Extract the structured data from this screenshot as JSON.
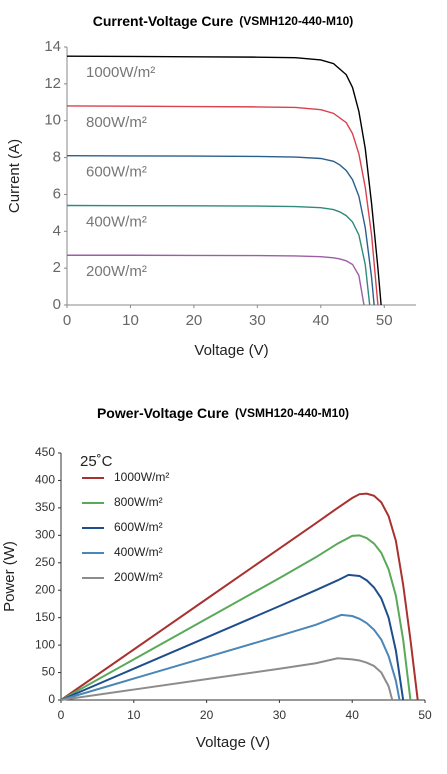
{
  "chart_data": [
    {
      "type": "line",
      "title": "Current-Voltage Cure",
      "subtitle": "(VSMH120-440-M10)",
      "xlabel": "Voltage (V)",
      "ylabel": "Current (A)",
      "xlim": [
        0,
        55
      ],
      "ylim": [
        0,
        14
      ],
      "xticks": [
        0,
        10,
        20,
        30,
        40,
        50
      ],
      "yticks": [
        0,
        2,
        4,
        6,
        8,
        10,
        12,
        14
      ],
      "legend": "inline",
      "series": [
        {
          "name": "1000W/m²",
          "color": "#000000",
          "x": [
            0,
            10,
            20,
            30,
            36,
            40,
            42,
            44,
            45,
            46,
            47,
            48,
            49,
            49.5
          ],
          "values": [
            13.5,
            13.49,
            13.47,
            13.45,
            13.42,
            13.3,
            13.1,
            12.5,
            11.8,
            10.5,
            8.5,
            5.5,
            2,
            0
          ]
        },
        {
          "name": "800W/m²",
          "color": "#d9414e",
          "x": [
            0,
            10,
            20,
            30,
            36,
            40,
            42,
            44,
            45,
            46,
            47,
            48,
            48.6,
            49
          ],
          "values": [
            10.8,
            10.79,
            10.77,
            10.75,
            10.72,
            10.6,
            10.4,
            9.9,
            9.3,
            8.2,
            6.4,
            3.8,
            1.5,
            0
          ]
        },
        {
          "name": "600W/m²",
          "color": "#2b5f8c",
          "x": [
            0,
            10,
            20,
            30,
            36,
            40,
            42,
            43,
            44,
            45,
            46,
            47,
            48,
            48.4
          ],
          "values": [
            8.1,
            8.09,
            8.08,
            8.06,
            8.03,
            7.95,
            7.8,
            7.6,
            7.3,
            6.8,
            5.9,
            4.2,
            1.5,
            0
          ]
        },
        {
          "name": "400W/m²",
          "color": "#2e8b7a",
          "x": [
            0,
            10,
            20,
            30,
            36,
            40,
            42,
            43,
            44,
            45,
            46,
            47,
            47.7
          ],
          "values": [
            5.4,
            5.39,
            5.38,
            5.37,
            5.34,
            5.28,
            5.18,
            5.05,
            4.85,
            4.5,
            3.8,
            2.2,
            0
          ]
        },
        {
          "name": "200W/m²",
          "color": "#9b5ea6",
          "x": [
            0,
            10,
            20,
            30,
            36,
            40,
            42,
            43,
            44,
            45,
            46,
            46.8
          ],
          "values": [
            2.7,
            2.7,
            2.69,
            2.68,
            2.66,
            2.62,
            2.56,
            2.5,
            2.4,
            2.2,
            1.6,
            0
          ]
        }
      ]
    },
    {
      "type": "line",
      "title": "Power-Voltage Cure",
      "subtitle": "(VSMH120-440-M10)",
      "xlabel": "Voltage (V)",
      "ylabel": "Power (W)",
      "xlim": [
        0,
        50
      ],
      "ylim": [
        0,
        450
      ],
      "xticks": [
        0,
        10,
        20,
        30,
        40,
        50
      ],
      "yticks": [
        0,
        50,
        100,
        150,
        200,
        250,
        300,
        350,
        400,
        450
      ],
      "legend": "upper left",
      "legend_title": "25˚C",
      "series": [
        {
          "name": "1000W/m²",
          "color": "#a8322f",
          "x": [
            0,
            10,
            20,
            30,
            35,
            38,
            40,
            41,
            42,
            43,
            44,
            45,
            46,
            47,
            48,
            49
          ],
          "values": [
            0,
            92,
            184,
            276,
            322,
            350,
            368,
            375,
            376,
            372,
            360,
            335,
            290,
            210,
            110,
            0
          ]
        },
        {
          "name": "800W/m²",
          "color": "#5aa95a",
          "x": [
            0,
            10,
            20,
            30,
            35,
            38,
            40,
            41,
            42,
            43,
            44,
            45,
            46,
            47,
            48
          ],
          "values": [
            0,
            74,
            148,
            222,
            260,
            285,
            299,
            300,
            295,
            285,
            268,
            238,
            190,
            110,
            0
          ]
        },
        {
          "name": "600W/m²",
          "color": "#1f4e8c",
          "x": [
            0,
            10,
            20,
            30,
            35,
            38,
            39.5,
            41,
            42,
            43,
            44,
            45,
            46,
            47
          ],
          "values": [
            0,
            57,
            114,
            171,
            200,
            218,
            228,
            226,
            218,
            205,
            185,
            150,
            90,
            0
          ]
        },
        {
          "name": "400W/m²",
          "color": "#4a86b8",
          "x": [
            0,
            10,
            20,
            30,
            35,
            38.5,
            40,
            41,
            42,
            43,
            44,
            45,
            46,
            46.5
          ],
          "values": [
            0,
            39,
            78,
            117,
            137,
            155,
            153,
            148,
            140,
            128,
            110,
            80,
            35,
            0
          ]
        },
        {
          "name": "200W/m²",
          "color": "#8c8c8c",
          "x": [
            0,
            10,
            20,
            30,
            35,
            38,
            40,
            41,
            42,
            43,
            44,
            45,
            45.5
          ],
          "values": [
            0,
            19,
            38,
            57,
            67,
            76,
            74,
            72,
            68,
            62,
            50,
            25,
            0
          ]
        }
      ]
    }
  ]
}
